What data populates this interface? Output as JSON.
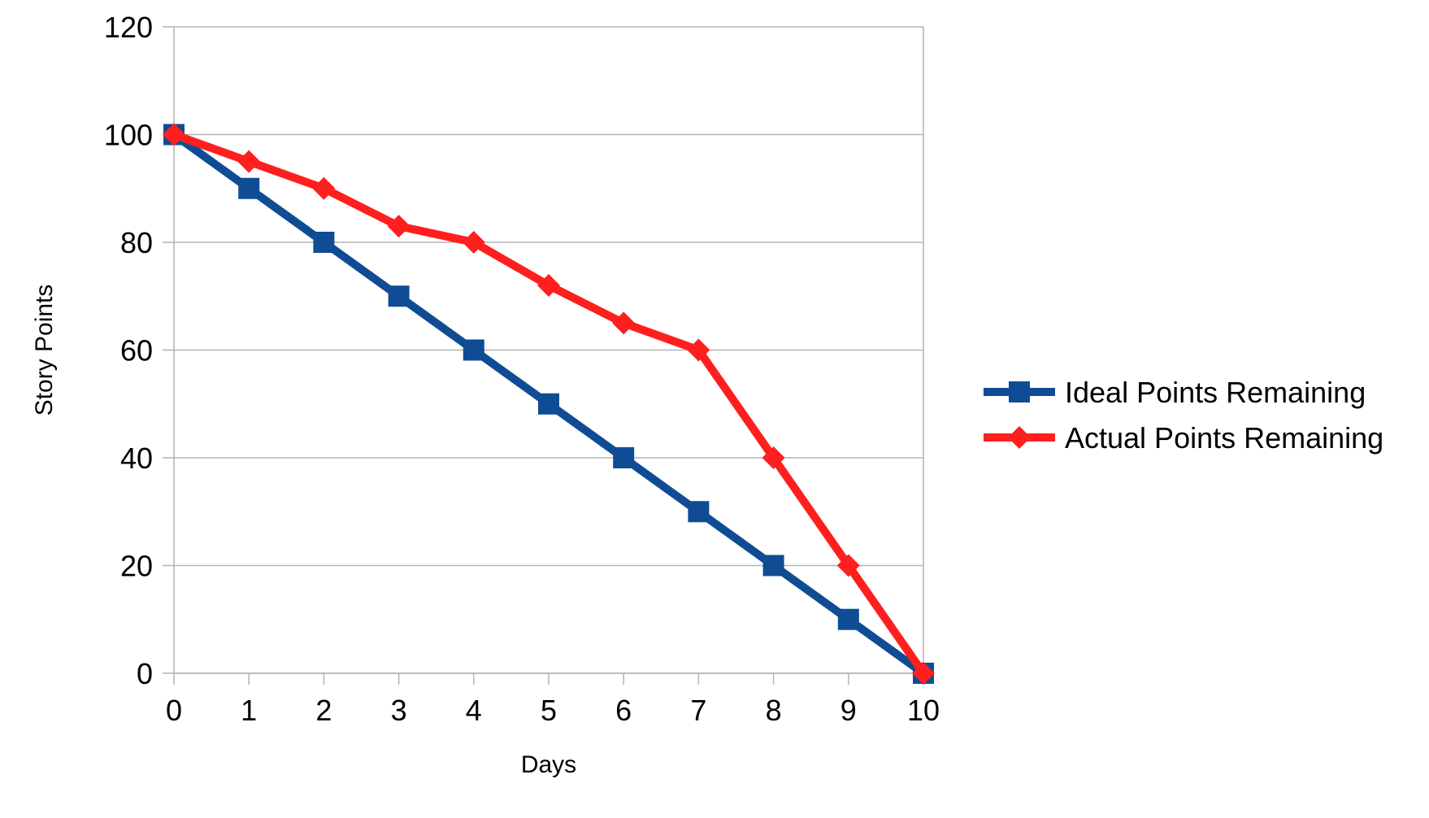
{
  "chart_data": {
    "type": "line",
    "title": "",
    "xlabel": "Days",
    "ylabel": "Story Points",
    "x": [
      0,
      1,
      2,
      3,
      4,
      5,
      6,
      7,
      8,
      9,
      10
    ],
    "xlim": [
      0,
      10
    ],
    "ylim": [
      0,
      120
    ],
    "x_ticks": [
      "0",
      "1",
      "2",
      "3",
      "4",
      "5",
      "6",
      "7",
      "8",
      "9",
      "10"
    ],
    "y_ticks": [
      "0",
      "20",
      "40",
      "60",
      "80",
      "100",
      "120"
    ],
    "grid": true,
    "legend_position": "right",
    "series": [
      {
        "name": "Ideal Points Remaining",
        "color": "#0f4c94",
        "marker": "square",
        "values": [
          100,
          90,
          80,
          70,
          60,
          50,
          40,
          30,
          20,
          10,
          0
        ]
      },
      {
        "name": "Actual Points Remaining",
        "color": "#ff1f1f",
        "marker": "diamond",
        "values": [
          100,
          95,
          90,
          83,
          80,
          72,
          65,
          60,
          40,
          20,
          0
        ]
      }
    ]
  }
}
